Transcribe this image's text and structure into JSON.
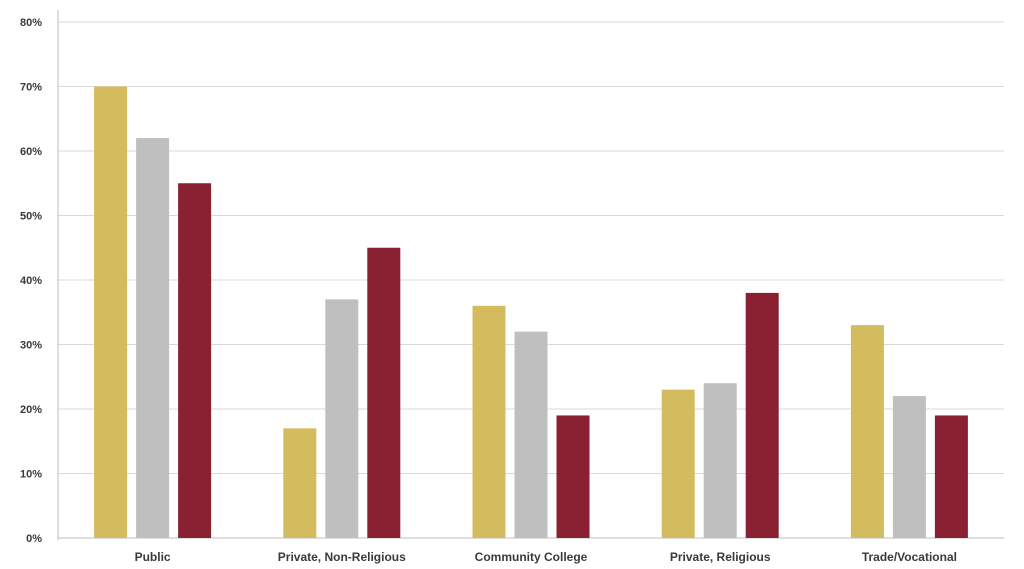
{
  "chart_data": {
    "type": "bar",
    "title": "",
    "xlabel": "",
    "ylabel": "",
    "categories": [
      "Public",
      "Private, Non-Religious",
      "Community College",
      "Private, Religious",
      "Trade/Vocational"
    ],
    "series": [
      {
        "color": "#D4BB5E",
        "values": [
          70,
          17,
          36,
          23,
          33
        ]
      },
      {
        "color": "#BFBFBF",
        "values": [
          62,
          37,
          32,
          24,
          22
        ]
      },
      {
        "color": "#8A2132",
        "values": [
          55,
          45,
          19,
          38,
          19
        ]
      }
    ],
    "ylim": [
      0,
      80
    ],
    "yticks": [
      "0%",
      "10%",
      "20%",
      "30%",
      "40%",
      "50%",
      "60%",
      "70%",
      "80%"
    ],
    "grid": true,
    "legend": "none"
  }
}
